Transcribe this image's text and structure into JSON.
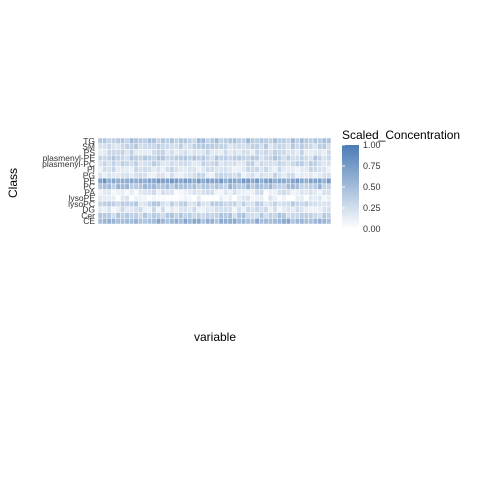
{
  "chart_data": {
    "type": "heatmap",
    "title": "",
    "xlabel": "variable",
    "ylabel": "Class",
    "legend": {
      "title": "Scaled_Concentration",
      "ticks": [
        "0.00",
        "0.25",
        "0.50",
        "0.75",
        "1.00"
      ],
      "range": [
        0,
        1
      ],
      "low_color": "#FFFFFF",
      "high_color": "#4A7BB5",
      "placement": "right"
    },
    "y_categories": [
      "TG",
      "SM",
      "PS",
      "plasmenyl-PE",
      "plasmenyl-PC",
      "PI",
      "PG",
      "PE",
      "PC",
      "PA",
      "lysoPE",
      "lysoPC",
      "DG",
      "Cer",
      "CE"
    ],
    "n_x_categories": 52,
    "row_means": [
      0.42,
      0.3,
      0.25,
      0.33,
      0.28,
      0.2,
      0.22,
      0.7,
      0.45,
      0.15,
      0.1,
      0.3,
      0.18,
      0.35,
      0.55
    ]
  }
}
